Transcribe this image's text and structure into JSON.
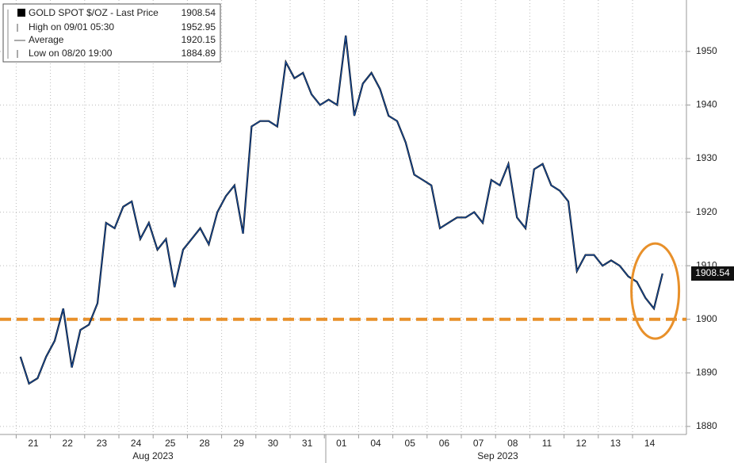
{
  "chart_data": {
    "type": "line",
    "categories": [
      "21",
      "22",
      "23",
      "24",
      "25",
      "28",
      "29",
      "30",
      "31",
      "01",
      "04",
      "05",
      "06",
      "07",
      "08",
      "11",
      "12",
      "13",
      "14"
    ],
    "months": [
      "Aug 2023",
      "Sep 2023"
    ],
    "series": [
      {
        "name": "GOLD SPOT $/OZ - Last Price",
        "color": "#1a4fa0",
        "values": [
          [
            1893,
            1888,
            1889,
            1893
          ],
          [
            1896,
            1902,
            1891,
            1898
          ],
          [
            1899,
            1903,
            1918,
            1917
          ],
          [
            1921,
            1922,
            1915,
            1918
          ],
          [
            1913,
            1915,
            1906,
            1913
          ],
          [
            1915,
            1917,
            1914,
            1920
          ],
          [
            1923,
            1925,
            1916,
            1936
          ],
          [
            1937,
            1937,
            1936,
            1948
          ],
          [
            1945,
            1946,
            1942,
            1940
          ],
          [
            1941,
            1940,
            1952.95,
            1938
          ],
          [
            1944,
            1946,
            1943,
            1938
          ],
          [
            1937,
            1933,
            1927,
            1926
          ],
          [
            1925,
            1917,
            1918,
            1919
          ],
          [
            1919,
            1920,
            1918,
            1926
          ],
          [
            1925,
            1929,
            1919,
            1917
          ],
          [
            1928,
            1929,
            1925,
            1924
          ],
          [
            1922,
            1909,
            1912,
            1912
          ],
          [
            1910,
            1911,
            1910,
            1908
          ],
          [
            1907,
            1904,
            1902,
            1908.54
          ]
        ]
      }
    ],
    "legend": [
      {
        "label": "GOLD SPOT $/OZ - Last Price",
        "value": 1908.54
      },
      {
        "label": "High on 09/01 05:30",
        "value": 1952.95
      },
      {
        "label": "Average",
        "value": 1920.15
      },
      {
        "label": "Low on 08/20 19:00",
        "value": 1884.89
      }
    ],
    "support_level": 1900,
    "support_color": "#e8902a",
    "ylim": [
      1878.5,
      1959.6
    ],
    "yticks": [
      1880,
      1890,
      1900,
      1910,
      1920,
      1930,
      1940,
      1950
    ],
    "grid": true
  }
}
